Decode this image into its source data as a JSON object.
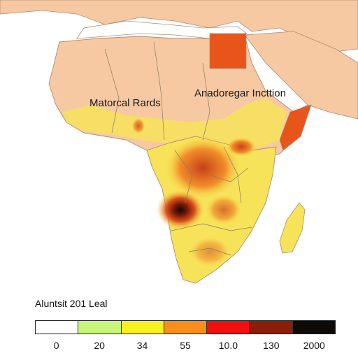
{
  "map": {
    "labels": {
      "west": "Matorcal Rards",
      "east": "Anadoregar Incttion"
    },
    "colors": {
      "sea": "#ffffff",
      "land_base": "#f6c9a3",
      "border": "#b08a72",
      "hot": "#e8551b"
    }
  },
  "legend": {
    "title": "Aluntsit 201 Leal",
    "colors": [
      "#ffffff",
      "#c8f57a",
      "#f7f21e",
      "#f98e1a",
      "#f20f0f",
      "#8a1e0a",
      "#0e0a08"
    ],
    "ticks": [
      "0",
      "20",
      "34",
      "55",
      "10.0",
      "130",
      "2000"
    ]
  }
}
